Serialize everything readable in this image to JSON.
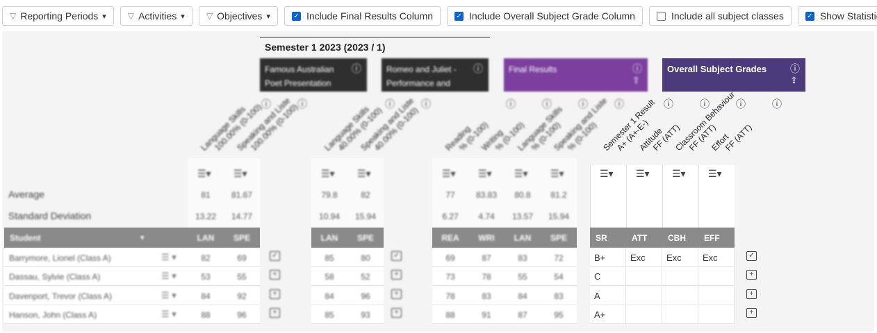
{
  "toolbar": {
    "filters": [
      "Reporting Periods",
      "Activities",
      "Objectives"
    ],
    "checkboxes": [
      {
        "label": "Include Final Results Column",
        "checked": true
      },
      {
        "label": "Include Overall Subject Grade Column",
        "checked": true
      },
      {
        "label": "Include all subject classes",
        "checked": false
      },
      {
        "label": "Show Statistics",
        "checked": true
      }
    ]
  },
  "semester": "Semester 1 2023 (2023 / 1)",
  "stats_labels": [
    "Average",
    "Standard Deviation"
  ],
  "student_header": "Student",
  "groups": [
    {
      "title": "Famous Australian Poet Presentation",
      "style": "activity",
      "columns": [
        {
          "name": "Language Skills",
          "scale": "100.00% (0-100)",
          "code": "LAN",
          "average": 81,
          "sd": 13.22
        },
        {
          "name": "Speaking and Liste",
          "scale": "100.00% (0-100)",
          "code": "SPE",
          "average": 81.67,
          "sd": 14.77
        }
      ]
    },
    {
      "title": "Romeo and Juliet - Performance and",
      "style": "activity",
      "columns": [
        {
          "name": "Language Skills",
          "scale": "40.00% (0-100)",
          "code": "LAN",
          "average": 79.8,
          "sd": 10.94
        },
        {
          "name": "Speaking and Liste",
          "scale": "40.00% (0-100)",
          "code": "SPE",
          "average": 82,
          "sd": 15.94
        }
      ]
    },
    {
      "title": "Final Results",
      "style": "final",
      "columns": [
        {
          "name": "Reading",
          "scale": "% (0-100)",
          "code": "REA",
          "average": 77,
          "sd": 6.27
        },
        {
          "name": "Writing",
          "scale": "% (0-100)",
          "code": "WRI",
          "average": 83.83,
          "sd": 4.74
        },
        {
          "name": "Language Skills",
          "scale": "% (0-100)",
          "code": "LAN",
          "average": 80.8,
          "sd": 13.57
        },
        {
          "name": "Speaking and Liste",
          "scale": "% (0-100)",
          "code": "SPE",
          "average": 81.2,
          "sd": 15.94
        }
      ]
    },
    {
      "title": "Overall Subject Grades",
      "style": "overall",
      "columns": [
        {
          "name": "Semester 1 Result",
          "scale": "A+ (A+-E-)",
          "code": "SR"
        },
        {
          "name": "Attitude",
          "scale": "FF (ATT)",
          "code": "ATT"
        },
        {
          "name": "Classroom Behaviour",
          "scale": "FF (ATT)",
          "code": "CBH"
        },
        {
          "name": "Effort",
          "scale": "FF (ATT)",
          "code": "EFF"
        }
      ]
    }
  ],
  "students": [
    {
      "name": "Barrymore, Lionel (Class A)",
      "scores": [
        [
          82,
          69
        ],
        [
          85,
          80
        ],
        [
          69,
          87,
          83,
          72
        ]
      ],
      "grades": [
        "B+",
        "Exc",
        "Exc",
        "Exc"
      ]
    },
    {
      "name": "Dassau, Sylvie (Class A)",
      "scores": [
        [
          53,
          55
        ],
        [
          58,
          52
        ],
        [
          73,
          78,
          55,
          54
        ]
      ],
      "grades": [
        "C",
        null,
        null,
        null
      ]
    },
    {
      "name": "Davenport, Trevor (Class A)",
      "scores": [
        [
          84,
          92
        ],
        [
          84,
          96
        ],
        [
          78,
          83,
          84,
          83
        ]
      ],
      "grades": [
        "A",
        null,
        null,
        null
      ]
    },
    {
      "name": "Hanson, John (Class A)",
      "scores": [
        [
          88,
          96
        ],
        [
          85,
          93
        ],
        [
          88,
          91,
          87,
          95
        ]
      ],
      "grades": [
        "A+",
        null,
        null,
        null
      ]
    }
  ]
}
